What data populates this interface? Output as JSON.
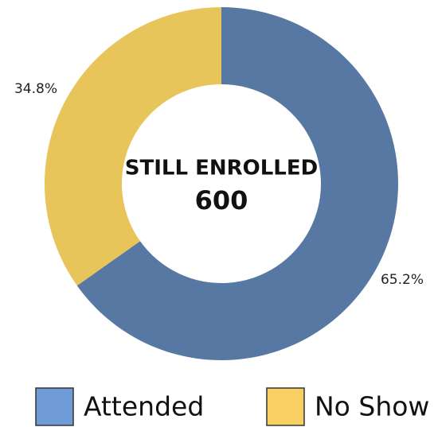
{
  "chart_data": {
    "type": "donut",
    "categories": [
      "Attended",
      "No Show"
    ],
    "values": [
      65.2,
      34.8
    ],
    "value_labels": [
      "65.2%",
      "34.8%"
    ],
    "colors": [
      "#5878a4",
      "#e8c55a"
    ],
    "legend_colors": [
      "#6f9bd6",
      "#f7cf63"
    ],
    "center_label": "STILL ENROLLED",
    "center_value": 600
  }
}
